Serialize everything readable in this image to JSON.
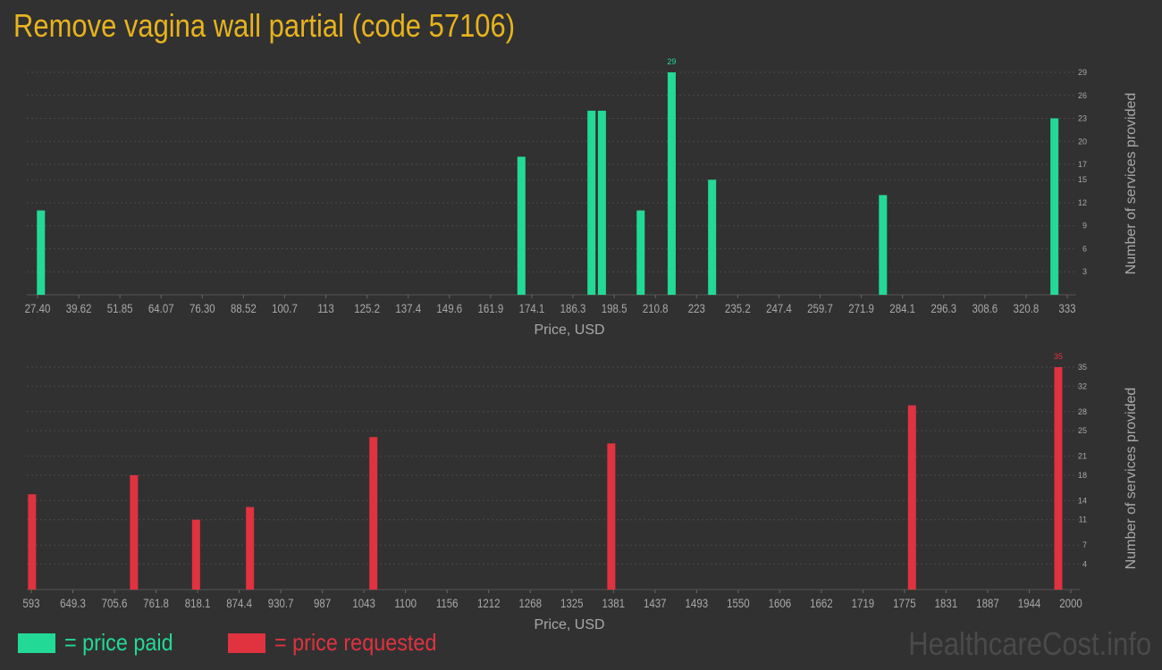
{
  "title": "Remove vagina wall partial (code 57106)",
  "legend": {
    "paid_label": "= price paid",
    "requested_label": "= price requested"
  },
  "watermark": "HealthcareCost.info",
  "colors": {
    "paid": "#23d996",
    "requested": "#e0323f",
    "title": "#e7b31d"
  },
  "chart_data": [
    {
      "type": "bar",
      "name": "price paid",
      "xlabel": "Price, USD",
      "ylabel": "Number of services provided",
      "xlim": [
        27.4,
        333
      ],
      "ylim": [
        0,
        29
      ],
      "x_ticks": [
        "27.40",
        "39.62",
        "51.85",
        "64.07",
        "76.30",
        "88.52",
        "100.7",
        "113",
        "125.2",
        "137.4",
        "149.6",
        "161.9",
        "174.1",
        "186.3",
        "198.5",
        "210.8",
        "223",
        "235.2",
        "247.4",
        "259.7",
        "271.9",
        "284.1",
        "296.3",
        "308.6",
        "320.8",
        "333"
      ],
      "y_ticks": [
        "3",
        "6",
        "9",
        "12",
        "15",
        "17",
        "20",
        "23",
        "26",
        "29"
      ],
      "peak_label": "29",
      "bars": [
        {
          "x": 28.4,
          "y": 11
        },
        {
          "x": 171.0,
          "y": 18
        },
        {
          "x": 191.8,
          "y": 24
        },
        {
          "x": 194.9,
          "y": 24
        },
        {
          "x": 206.4,
          "y": 11
        },
        {
          "x": 215.6,
          "y": 29
        },
        {
          "x": 227.6,
          "y": 15
        },
        {
          "x": 278.3,
          "y": 13
        },
        {
          "x": 329.2,
          "y": 23
        }
      ]
    },
    {
      "type": "bar",
      "name": "price requested",
      "xlabel": "Price, USD",
      "ylabel": "Number of services provided",
      "xlim": [
        593,
        2000
      ],
      "ylim": [
        0,
        35
      ],
      "x_ticks": [
        "593",
        "649.3",
        "705.6",
        "761.8",
        "818.1",
        "874.4",
        "930.7",
        "987",
        "1043",
        "1100",
        "1156",
        "1212",
        "1268",
        "1325",
        "1381",
        "1437",
        "1493",
        "1550",
        "1606",
        "1662",
        "1719",
        "1775",
        "1831",
        "1887",
        "1944",
        "2000"
      ],
      "y_ticks": [
        "4",
        "7",
        "11",
        "14",
        "18",
        "21",
        "25",
        "28",
        "32",
        "35"
      ],
      "peak_label": "35",
      "bars": [
        {
          "x": 594,
          "y": 15
        },
        {
          "x": 732,
          "y": 18
        },
        {
          "x": 816,
          "y": 11
        },
        {
          "x": 889,
          "y": 13
        },
        {
          "x": 1056,
          "y": 24
        },
        {
          "x": 1378,
          "y": 23
        },
        {
          "x": 1785,
          "y": 29
        },
        {
          "x": 1983,
          "y": 35
        }
      ]
    }
  ]
}
